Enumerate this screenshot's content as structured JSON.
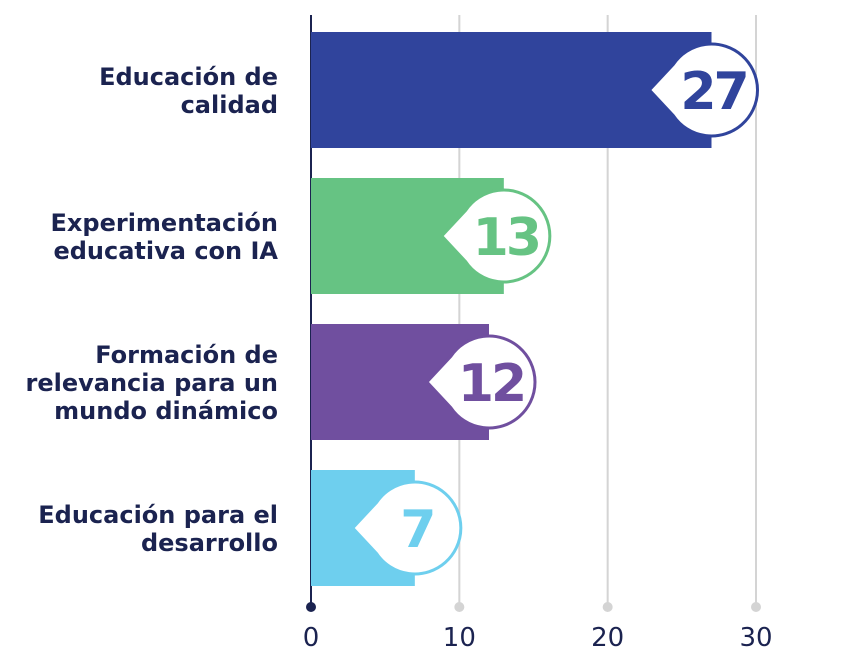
{
  "chart_data": {
    "type": "bar",
    "orientation": "horizontal",
    "categories": [
      [
        "Educación de",
        "calidad"
      ],
      [
        "Experimentación",
        "educativa con IA"
      ],
      [
        "Formación de",
        "relevancia para un",
        "mundo dinámico"
      ],
      [
        "Educación para el",
        "desarrollo"
      ]
    ],
    "values": [
      27,
      13,
      12,
      7
    ],
    "colors": [
      "#30449c",
      "#66c383",
      "#704f9f",
      "#6ecfee"
    ],
    "xlim": [
      0,
      30
    ],
    "xticks": [
      0,
      10,
      20,
      30
    ],
    "title": "",
    "xlabel": "",
    "ylabel": "",
    "grid": true,
    "legend": "none"
  }
}
